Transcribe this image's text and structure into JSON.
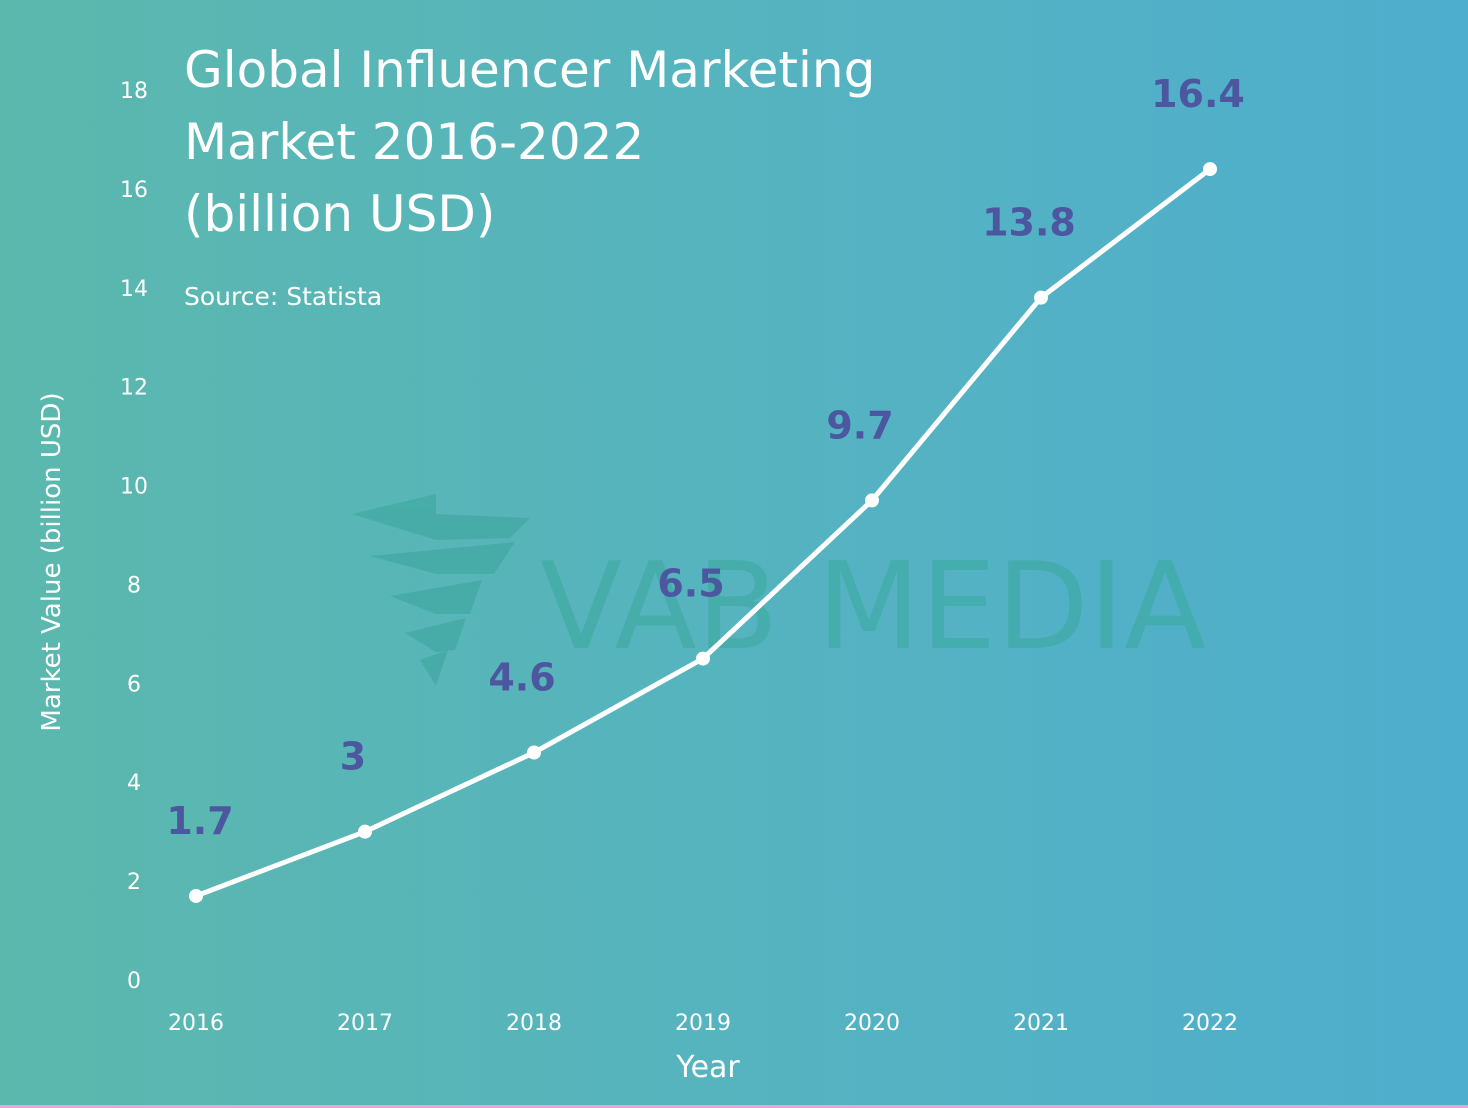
{
  "title_lines": [
    "Global Influencer Marketing",
    "Market 2016-2022",
    "(billion USD)"
  ],
  "source": "Source: Statista",
  "watermark": {
    "text": "VAB MEDIA",
    "color": "#39a99c"
  },
  "colors": {
    "line": "#ffffff",
    "data_label": "#4d57a0",
    "bg_left": "#5bb8ad",
    "bg_right": "#4eaecd"
  },
  "chart_data": {
    "type": "line",
    "title": "Global Influencer Marketing Market 2016-2022 (billion USD)",
    "xlabel": "Year",
    "ylabel": "Market Value (billion USD)",
    "categories": [
      "2016",
      "2017",
      "2018",
      "2019",
      "2020",
      "2021",
      "2022"
    ],
    "values": [
      1.7,
      3,
      4.6,
      6.5,
      9.7,
      13.8,
      16.4
    ],
    "data_labels": [
      "1.7",
      "3",
      "4.6",
      "6.5",
      "9.7",
      "13.8",
      "16.4"
    ],
    "yticks": [
      "0",
      "2",
      "4",
      "6",
      "8",
      "10",
      "12",
      "14",
      "16",
      "18"
    ],
    "ylim": [
      0,
      18
    ],
    "grid": false,
    "legend": "none"
  }
}
